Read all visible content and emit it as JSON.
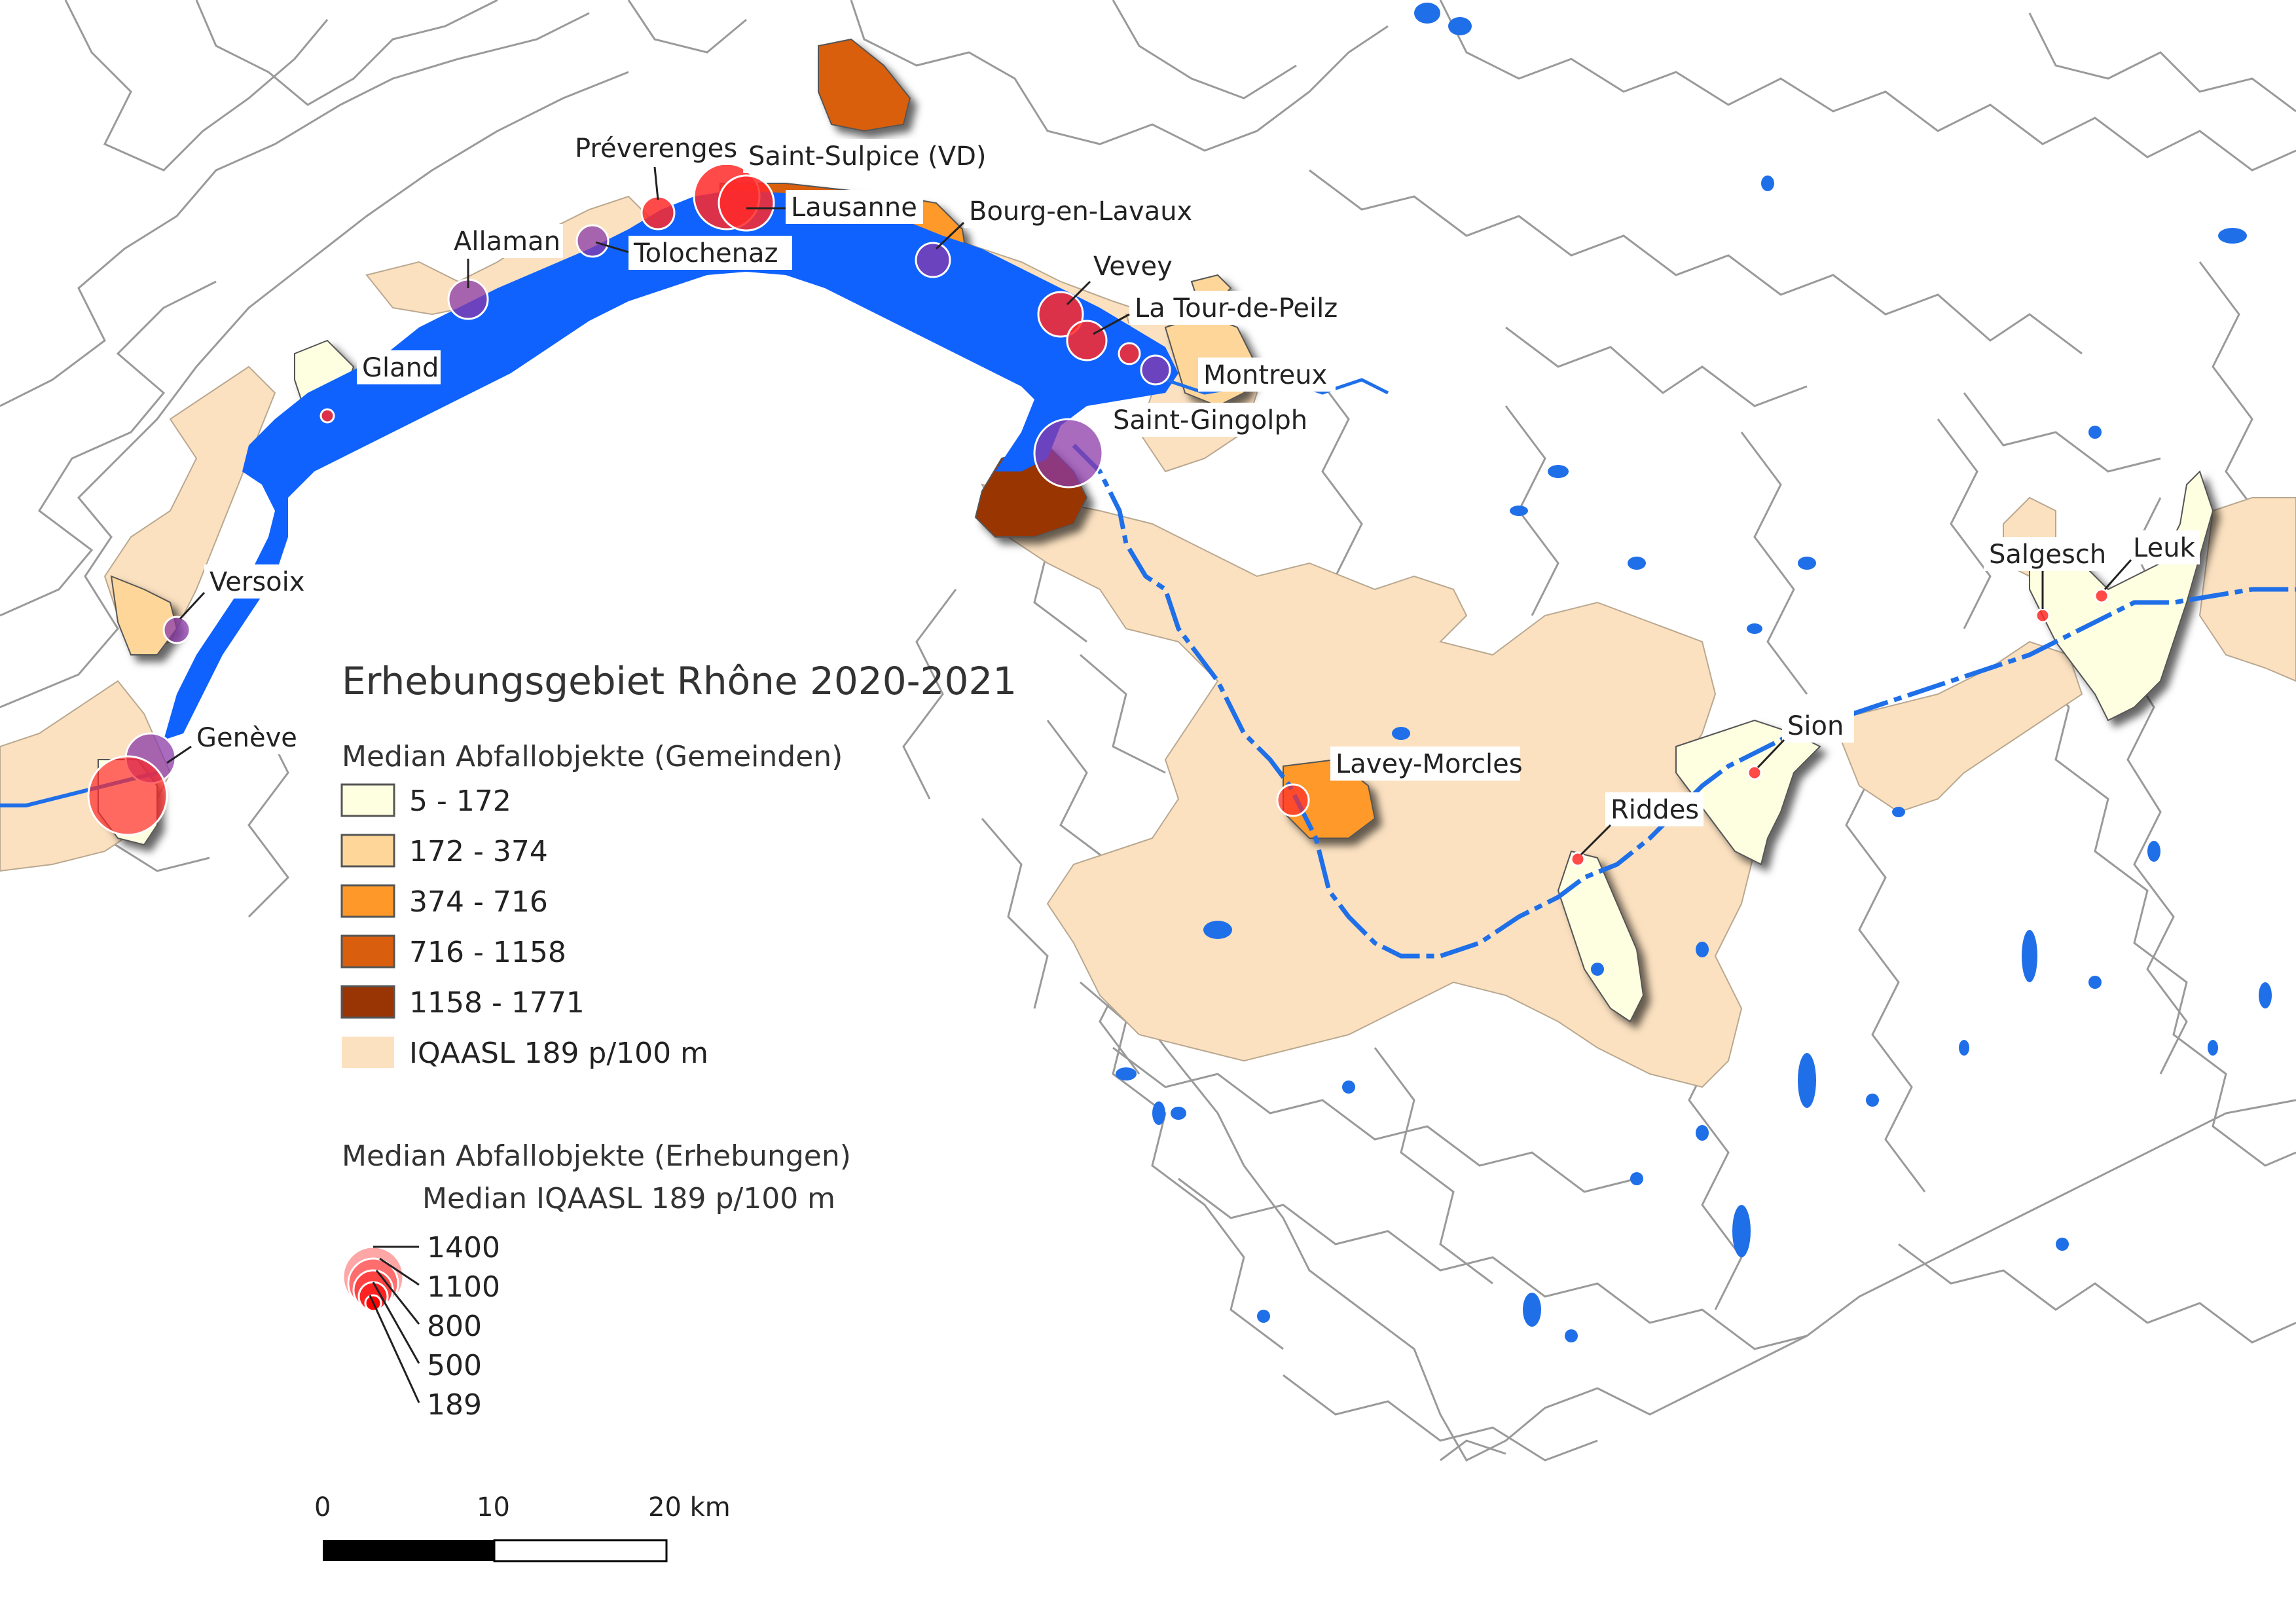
{
  "legend": {
    "title": "Erhebungsgebiet Rhône 2020-2021",
    "municipalities_heading": "Median Abfallobjekte (Gemeinden)",
    "classes": [
      {
        "label": "5 - 172",
        "color": "#fefee0"
      },
      {
        "label": "172 - 374",
        "color": "#fed699"
      },
      {
        "label": "374 - 716",
        "color": "#fe9929"
      },
      {
        "label": "716 - 1158",
        "color": "#d95f0e"
      },
      {
        "label": "1158 - 1771",
        "color": "#993404"
      },
      {
        "label": "IQAASL 189 p/100 m",
        "color": "#fbe1c0"
      }
    ],
    "surveys_heading": "Median Abfallobjekte (Erhebungen)",
    "surveys_subheading": "Median IQAASL 189 p/100 m",
    "circle_values": [
      "1400",
      "1100",
      "800",
      "500",
      "189"
    ]
  },
  "places": [
    {
      "name": "Préverenges",
      "value": 800
    },
    {
      "name": "Saint-Sulpice (VD)",
      "value": 1400
    },
    {
      "name": "Lausanne",
      "value": 1400
    },
    {
      "name": "Bourg-en-Lavaux",
      "value": 500
    },
    {
      "name": "Allaman",
      "value": 500
    },
    {
      "name": "Tolochenaz",
      "value": 500
    },
    {
      "name": "Vevey",
      "value": 800
    },
    {
      "name": "La Tour-de-Peilz",
      "value": 1100
    },
    {
      "name": "Montreux",
      "value": 500
    },
    {
      "name": "Gland",
      "value": 189
    },
    {
      "name": "Saint-Gingolph",
      "value": 1100
    },
    {
      "name": "Versoix",
      "value": 500
    },
    {
      "name": "Genève",
      "value": 1400
    },
    {
      "name": "Lavey-Morcles",
      "value": 500
    },
    {
      "name": "Riddes",
      "value": 189
    },
    {
      "name": "Sion",
      "value": 189
    },
    {
      "name": "Salgesch",
      "value": 189
    },
    {
      "name": "Leuk",
      "value": 189
    }
  ],
  "scalebar": {
    "labels": [
      "0",
      "10",
      "20 km"
    ]
  },
  "colors": {
    "lake": "#0f62fe",
    "river": "#1f6fe8",
    "border": "#9a9a9a",
    "survey_circle": "#ff2a2a",
    "survey_circle_purple": "#8b3aa8"
  }
}
